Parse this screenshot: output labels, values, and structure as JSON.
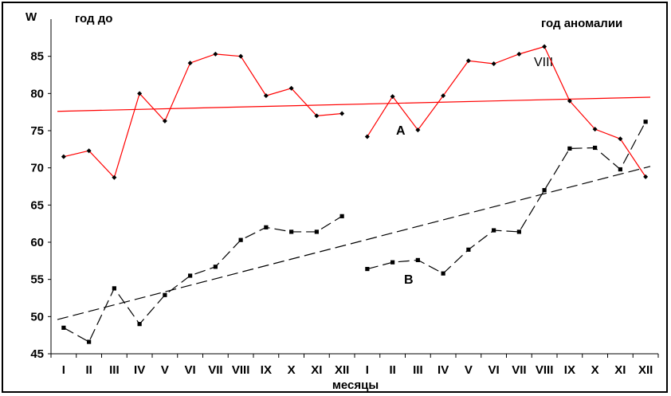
{
  "chart_data": {
    "type": "line",
    "ylabel": "W",
    "xlabel": "месяцы",
    "header_left": "год до",
    "header_right": "год аномалии",
    "ylim": [
      45,
      90
    ],
    "yticks": [
      45,
      50,
      55,
      60,
      65,
      70,
      75,
      80,
      85
    ],
    "categories": [
      "I",
      "II",
      "III",
      "IV",
      "V",
      "VI",
      "VII",
      "VIII",
      "IX",
      "X",
      "XI",
      "XII",
      "I",
      "II",
      "III",
      "IV",
      "V",
      "VI",
      "VII",
      "VIII",
      "IX",
      "X",
      "XI",
      "XII"
    ],
    "grid": false,
    "series": [
      {
        "name": "A",
        "color": "#ff0000",
        "marker": "diamond",
        "segments": [
          {
            "start": 0,
            "values": [
              71.5,
              72.3,
              68.7,
              80.0,
              76.3,
              84.1,
              85.3,
              85.0,
              79.7,
              80.7,
              77.0,
              77.3
            ]
          },
          {
            "start": 12,
            "values": [
              74.2,
              79.6,
              75.1,
              79.7,
              84.4,
              84.0,
              85.3,
              86.3,
              79.0,
              75.2,
              73.9,
              68.8
            ]
          }
        ],
        "trend": {
          "color": "#ff0000",
          "style": "solid",
          "from": 77.6,
          "to": 79.5
        }
      },
      {
        "name": "B",
        "color": "#000000",
        "marker": "square",
        "segments": [
          {
            "start": 0,
            "values": [
              48.5,
              46.6,
              53.8,
              49.0,
              52.9,
              55.5,
              56.7,
              60.3,
              62.0,
              61.4,
              61.4,
              63.5
            ]
          },
          {
            "start": 12,
            "values": [
              56.4,
              57.3,
              57.6,
              55.8,
              59.0,
              61.6,
              61.4,
              67.0,
              72.6,
              72.7,
              69.8,
              76.2
            ]
          }
        ],
        "trend": {
          "color": "#000000",
          "style": "dashed",
          "from": 49.6,
          "to": 70.2
        }
      }
    ],
    "annotations": [
      {
        "text": "VIII"
      },
      {
        "text": "A"
      },
      {
        "text": "B"
      }
    ]
  }
}
